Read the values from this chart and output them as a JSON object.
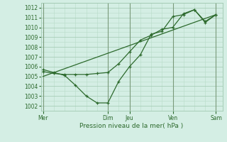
{
  "background_color": "#d4eee4",
  "grid_major_color": "#a0c8b0",
  "grid_minor_color": "#b8dcc8",
  "line_color": "#2d6a2d",
  "vline_color": "#7a9a7a",
  "ylim": [
    1001.5,
    1012.5
  ],
  "yticks": [
    1002,
    1003,
    1004,
    1005,
    1006,
    1007,
    1008,
    1009,
    1010,
    1011,
    1012
  ],
  "xtick_labels": [
    "Mer",
    "",
    "Dim",
    "Jeu",
    "",
    "Ven",
    "",
    "Sam"
  ],
  "xtick_positions": [
    0,
    1.5,
    3,
    4,
    5,
    6,
    7,
    8
  ],
  "vline_positions": [
    0,
    3,
    4,
    6,
    8
  ],
  "xlabel": "Pression niveau de la mer( hPa )",
  "series1_x": [
    0,
    0.5,
    1,
    1.5,
    2,
    2.5,
    3,
    3.5,
    4,
    4.5,
    5,
    5.5,
    6,
    6.5,
    7,
    7.5,
    8
  ],
  "series1_y": [
    1005.7,
    1005.4,
    1005.1,
    1004.1,
    1003.0,
    1002.3,
    1002.3,
    1004.5,
    1006.0,
    1007.2,
    1009.3,
    1009.6,
    1011.1,
    1011.3,
    1011.8,
    1010.6,
    1011.3
  ],
  "series2_x": [
    0,
    0.5,
    1,
    1.5,
    2,
    2.5,
    3,
    3.5,
    4,
    4.5,
    5,
    5.5,
    6,
    6.5,
    7,
    7.5,
    8
  ],
  "series2_y": [
    1005.5,
    1005.3,
    1005.2,
    1005.2,
    1005.2,
    1005.3,
    1005.4,
    1006.3,
    1007.5,
    1008.7,
    1009.2,
    1009.8,
    1010.0,
    1011.4,
    1011.8,
    1010.5,
    1011.3
  ],
  "series3_x": [
    0,
    8
  ],
  "series3_y": [
    1005.0,
    1011.3
  ],
  "figsize": [
    3.2,
    2.0
  ],
  "dpi": 100
}
